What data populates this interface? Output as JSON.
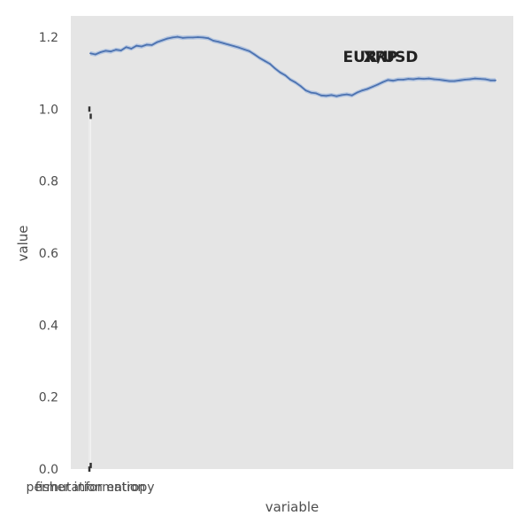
{
  "chart_data": {
    "type": "line",
    "xlabel": "variable",
    "ylabel": "value",
    "ylim": [
      0,
      1.26
    ],
    "yticks": [
      0.0,
      0.2,
      0.4,
      0.6,
      0.8,
      1.0,
      1.2
    ],
    "ytick_labels": [
      "0.0",
      "0.2",
      "0.4",
      "0.6",
      "0.8",
      "1.0",
      "1.2"
    ],
    "x_tick_labels": [
      "permutation entropy",
      "fisher information"
    ],
    "grid": false,
    "background": "#e5e5e5",
    "overlapping_titles": [
      "EUR/USD",
      "XRP"
    ],
    "series": [
      {
        "values": [
          1.155,
          1.152,
          1.158,
          1.162,
          1.16,
          1.165,
          1.163,
          1.172,
          1.168,
          1.176,
          1.174,
          1.179,
          1.178,
          1.186,
          1.191,
          1.196,
          1.199,
          1.201,
          1.198,
          1.199,
          1.199,
          1.2,
          1.199,
          1.197,
          1.19,
          1.187,
          1.183,
          1.179,
          1.175,
          1.171,
          1.166,
          1.161,
          1.152,
          1.142,
          1.134,
          1.126,
          1.113,
          1.102,
          1.094,
          1.082,
          1.074,
          1.064,
          1.052,
          1.046,
          1.044,
          1.038,
          1.037,
          1.039,
          1.036,
          1.039,
          1.041,
          1.038,
          1.046,
          1.052,
          1.056,
          1.062,
          1.068,
          1.075,
          1.081,
          1.079,
          1.082,
          1.082,
          1.084,
          1.083,
          1.085,
          1.084,
          1.085,
          1.083,
          1.082,
          1.08,
          1.078,
          1.078,
          1.08,
          1.082,
          1.083,
          1.085,
          1.084,
          1.083,
          1.08,
          1.08
        ],
        "color": "#4c72b0",
        "band_color": "#a9bedf"
      }
    ],
    "overlays": [
      {
        "label": "permutation entropy",
        "range": [
          0.0,
          1.0
        ]
      },
      {
        "label": "fisher information",
        "range": [
          0.01,
          0.98
        ]
      }
    ]
  }
}
